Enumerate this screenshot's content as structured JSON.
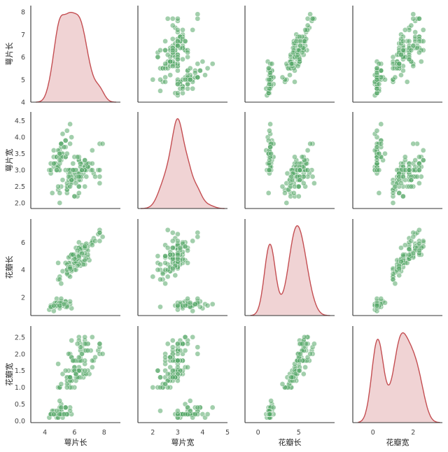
{
  "chart_data": {
    "type": "scatter",
    "subtype": "pairplot",
    "variables": [
      "萼片长",
      "萼片宽",
      "花瓣长",
      "花瓣宽"
    ],
    "diagonal": "kde",
    "grid": false,
    "legend": "none",
    "colors": {
      "point": "#55a868",
      "point_edge": "#ffffff",
      "kde_line": "#c44e52",
      "kde_fill": "#c44e52",
      "axis": "#333333"
    },
    "x_ranges": [
      [
        3.05,
        9.1
      ],
      [
        1.4,
        5.0
      ],
      [
        -1.6,
        9.4
      ],
      [
        -1.0,
        3.45
      ]
    ],
    "y_ranges": [
      [
        4.0,
        8.28
      ],
      [
        1.83,
        4.77
      ],
      [
        0.67,
        7.7
      ],
      [
        -0.05,
        2.83
      ]
    ],
    "x_ticks": [
      [
        4,
        6,
        8
      ],
      [
        2,
        3,
        4,
        5
      ],
      [
        0,
        5
      ],
      [
        0,
        2
      ]
    ],
    "y_ticks": [
      [
        "4",
        "5",
        "6",
        "7",
        "8"
      ],
      [
        "2.0",
        "2.5",
        "3.0",
        "3.5",
        "4.0",
        "4.5"
      ],
      [
        "2",
        "4",
        "6"
      ],
      [
        "0.0",
        "0.5",
        "1.0",
        "1.5",
        "2.0",
        "2.5"
      ]
    ],
    "data": [
      [
        5.1,
        3.5,
        1.4,
        0.2
      ],
      [
        4.9,
        3.0,
        1.4,
        0.2
      ],
      [
        4.7,
        3.2,
        1.3,
        0.2
      ],
      [
        4.6,
        3.1,
        1.5,
        0.2
      ],
      [
        5.0,
        3.6,
        1.4,
        0.2
      ],
      [
        5.4,
        3.9,
        1.7,
        0.4
      ],
      [
        4.6,
        3.4,
        1.4,
        0.3
      ],
      [
        5.0,
        3.4,
        1.5,
        0.2
      ],
      [
        4.4,
        2.9,
        1.4,
        0.2
      ],
      [
        4.9,
        3.1,
        1.5,
        0.1
      ],
      [
        5.4,
        3.7,
        1.5,
        0.2
      ],
      [
        4.8,
        3.4,
        1.6,
        0.2
      ],
      [
        4.8,
        3.0,
        1.4,
        0.1
      ],
      [
        4.3,
        3.0,
        1.1,
        0.1
      ],
      [
        5.8,
        4.0,
        1.2,
        0.2
      ],
      [
        5.7,
        4.4,
        1.5,
        0.4
      ],
      [
        5.4,
        3.9,
        1.3,
        0.4
      ],
      [
        5.1,
        3.5,
        1.4,
        0.3
      ],
      [
        5.7,
        3.8,
        1.7,
        0.3
      ],
      [
        5.1,
        3.8,
        1.5,
        0.3
      ],
      [
        5.4,
        3.4,
        1.7,
        0.2
      ],
      [
        5.1,
        3.7,
        1.5,
        0.4
      ],
      [
        4.6,
        3.6,
        1.0,
        0.2
      ],
      [
        5.1,
        3.3,
        1.7,
        0.5
      ],
      [
        4.8,
        3.4,
        1.9,
        0.2
      ],
      [
        5.0,
        3.0,
        1.6,
        0.2
      ],
      [
        5.0,
        3.4,
        1.6,
        0.4
      ],
      [
        5.2,
        3.5,
        1.5,
        0.2
      ],
      [
        5.2,
        3.4,
        1.4,
        0.2
      ],
      [
        4.7,
        3.2,
        1.6,
        0.2
      ],
      [
        4.8,
        3.1,
        1.6,
        0.2
      ],
      [
        5.4,
        3.4,
        1.5,
        0.4
      ],
      [
        5.2,
        4.1,
        1.5,
        0.1
      ],
      [
        5.5,
        4.2,
        1.4,
        0.2
      ],
      [
        4.9,
        3.1,
        1.5,
        0.2
      ],
      [
        5.0,
        3.2,
        1.2,
        0.2
      ],
      [
        5.5,
        3.5,
        1.3,
        0.2
      ],
      [
        4.9,
        3.6,
        1.4,
        0.1
      ],
      [
        4.4,
        3.0,
        1.3,
        0.2
      ],
      [
        5.1,
        3.4,
        1.5,
        0.2
      ],
      [
        5.0,
        3.5,
        1.3,
        0.3
      ],
      [
        4.5,
        2.3,
        1.3,
        0.3
      ],
      [
        4.4,
        3.2,
        1.3,
        0.2
      ],
      [
        5.0,
        3.5,
        1.6,
        0.6
      ],
      [
        5.1,
        3.8,
        1.9,
        0.4
      ],
      [
        4.8,
        3.0,
        1.4,
        0.3
      ],
      [
        5.1,
        3.8,
        1.6,
        0.2
      ],
      [
        4.6,
        3.2,
        1.4,
        0.2
      ],
      [
        5.3,
        3.7,
        1.5,
        0.2
      ],
      [
        5.0,
        3.3,
        1.4,
        0.2
      ],
      [
        7.0,
        3.2,
        4.7,
        1.4
      ],
      [
        6.4,
        3.2,
        4.5,
        1.5
      ],
      [
        6.9,
        3.1,
        4.9,
        1.5
      ],
      [
        5.5,
        2.3,
        4.0,
        1.3
      ],
      [
        6.5,
        2.8,
        4.6,
        1.5
      ],
      [
        5.7,
        2.8,
        4.5,
        1.3
      ],
      [
        6.3,
        3.3,
        4.7,
        1.6
      ],
      [
        4.9,
        2.4,
        3.3,
        1.0
      ],
      [
        6.6,
        2.9,
        4.6,
        1.3
      ],
      [
        5.2,
        2.7,
        3.9,
        1.4
      ],
      [
        5.0,
        2.0,
        3.5,
        1.0
      ],
      [
        5.9,
        3.0,
        4.2,
        1.5
      ],
      [
        6.0,
        2.2,
        4.0,
        1.0
      ],
      [
        6.1,
        2.9,
        4.7,
        1.4
      ],
      [
        5.6,
        2.9,
        3.6,
        1.3
      ],
      [
        6.7,
        3.1,
        4.4,
        1.4
      ],
      [
        5.6,
        3.0,
        4.5,
        1.5
      ],
      [
        5.8,
        2.7,
        4.1,
        1.0
      ],
      [
        6.2,
        2.2,
        4.5,
        1.5
      ],
      [
        5.6,
        2.5,
        3.9,
        1.1
      ],
      [
        5.9,
        3.2,
        4.8,
        1.8
      ],
      [
        6.1,
        2.8,
        4.0,
        1.3
      ],
      [
        6.3,
        2.5,
        4.9,
        1.5
      ],
      [
        6.1,
        2.8,
        4.7,
        1.2
      ],
      [
        6.4,
        2.9,
        4.3,
        1.3
      ],
      [
        6.6,
        3.0,
        4.4,
        1.4
      ],
      [
        6.8,
        2.8,
        4.8,
        1.4
      ],
      [
        6.7,
        3.0,
        5.0,
        1.7
      ],
      [
        6.0,
        2.9,
        4.5,
        1.5
      ],
      [
        5.7,
        2.6,
        3.5,
        1.0
      ],
      [
        5.5,
        2.4,
        3.8,
        1.1
      ],
      [
        5.5,
        2.4,
        3.7,
        1.0
      ],
      [
        5.8,
        2.7,
        3.9,
        1.2
      ],
      [
        6.0,
        2.7,
        5.1,
        1.6
      ],
      [
        5.4,
        3.0,
        4.5,
        1.5
      ],
      [
        6.0,
        3.4,
        4.5,
        1.6
      ],
      [
        6.7,
        3.1,
        4.7,
        1.5
      ],
      [
        6.3,
        2.3,
        4.4,
        1.3
      ],
      [
        5.6,
        3.0,
        4.1,
        1.3
      ],
      [
        5.5,
        2.5,
        4.0,
        1.3
      ],
      [
        5.5,
        2.6,
        4.4,
        1.2
      ],
      [
        6.1,
        3.0,
        4.6,
        1.4
      ],
      [
        5.8,
        2.6,
        4.0,
        1.2
      ],
      [
        5.0,
        2.3,
        3.3,
        1.0
      ],
      [
        5.6,
        2.7,
        4.2,
        1.3
      ],
      [
        5.7,
        3.0,
        4.2,
        1.2
      ],
      [
        5.7,
        2.9,
        4.2,
        1.3
      ],
      [
        6.2,
        2.9,
        4.3,
        1.3
      ],
      [
        5.1,
        2.5,
        3.0,
        1.1
      ],
      [
        5.7,
        2.8,
        4.1,
        1.3
      ],
      [
        6.3,
        3.3,
        6.0,
        2.5
      ],
      [
        5.8,
        2.7,
        5.1,
        1.9
      ],
      [
        7.1,
        3.0,
        5.9,
        2.1
      ],
      [
        6.3,
        2.9,
        5.6,
        1.8
      ],
      [
        6.5,
        3.0,
        5.8,
        2.2
      ],
      [
        7.6,
        3.0,
        6.6,
        2.1
      ],
      [
        4.9,
        2.5,
        4.5,
        1.7
      ],
      [
        7.3,
        2.9,
        6.3,
        1.8
      ],
      [
        6.7,
        2.5,
        5.8,
        1.8
      ],
      [
        7.2,
        3.6,
        6.1,
        2.5
      ],
      [
        6.5,
        3.2,
        5.1,
        2.0
      ],
      [
        6.4,
        2.7,
        5.3,
        1.9
      ],
      [
        6.8,
        3.0,
        5.5,
        2.1
      ],
      [
        5.7,
        2.5,
        5.0,
        2.0
      ],
      [
        5.8,
        2.8,
        5.1,
        2.4
      ],
      [
        6.4,
        3.2,
        5.3,
        2.3
      ],
      [
        6.5,
        3.0,
        5.5,
        1.8
      ],
      [
        7.7,
        3.8,
        6.7,
        2.2
      ],
      [
        7.7,
        2.6,
        6.9,
        2.3
      ],
      [
        6.0,
        2.2,
        5.0,
        1.5
      ],
      [
        6.9,
        3.2,
        5.7,
        2.3
      ],
      [
        5.6,
        2.8,
        4.9,
        2.0
      ],
      [
        7.7,
        2.8,
        6.7,
        2.0
      ],
      [
        6.3,
        2.7,
        4.9,
        1.8
      ],
      [
        6.7,
        3.3,
        5.7,
        2.1
      ],
      [
        7.2,
        3.2,
        6.0,
        1.8
      ],
      [
        6.2,
        2.8,
        4.8,
        1.8
      ],
      [
        6.1,
        3.0,
        4.9,
        1.8
      ],
      [
        6.4,
        2.8,
        5.6,
        2.1
      ],
      [
        7.2,
        3.0,
        5.8,
        1.6
      ],
      [
        7.4,
        2.8,
        6.1,
        1.9
      ],
      [
        7.9,
        3.8,
        6.4,
        2.0
      ],
      [
        6.4,
        2.8,
        5.6,
        2.2
      ],
      [
        6.3,
        2.8,
        5.1,
        1.5
      ],
      [
        6.1,
        2.6,
        5.6,
        1.4
      ],
      [
        7.7,
        3.0,
        6.1,
        2.3
      ],
      [
        6.3,
        3.4,
        5.6,
        2.4
      ],
      [
        6.4,
        3.1,
        5.5,
        1.8
      ],
      [
        6.0,
        3.0,
        4.8,
        1.8
      ],
      [
        6.9,
        3.1,
        5.4,
        2.1
      ],
      [
        6.7,
        3.1,
        5.6,
        2.4
      ],
      [
        6.9,
        3.1,
        5.1,
        2.3
      ],
      [
        5.8,
        2.7,
        5.1,
        1.9
      ],
      [
        6.8,
        3.2,
        5.9,
        2.3
      ],
      [
        6.7,
        3.3,
        5.7,
        2.5
      ],
      [
        6.7,
        3.0,
        5.2,
        2.3
      ],
      [
        6.3,
        2.5,
        5.0,
        1.9
      ],
      [
        6.5,
        3.0,
        5.2,
        2.0
      ],
      [
        6.2,
        3.4,
        5.4,
        2.3
      ],
      [
        5.9,
        3.0,
        5.1,
        1.8
      ]
    ]
  }
}
